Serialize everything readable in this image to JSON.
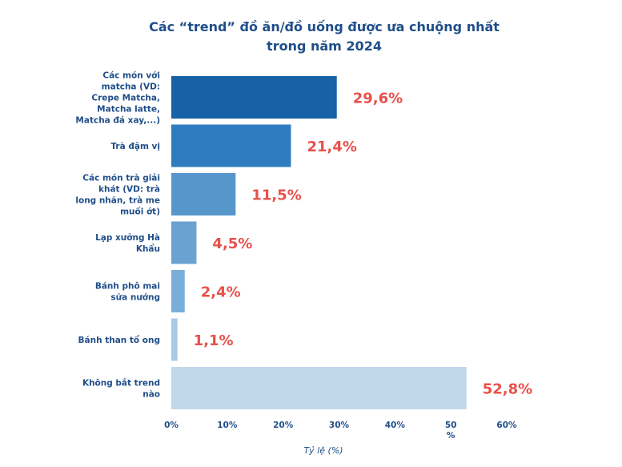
{
  "chart_data": {
    "type": "bar",
    "orientation": "horizontal",
    "title_lines": [
      "Các “trend” đồ ăn/đồ uống được ưa chuộng nhất",
      "trong năm 2024"
    ],
    "xlabel": "Tỷ lệ (%)",
    "ylabel": "",
    "xlim": [
      0,
      60
    ],
    "ticks": [
      {
        "value": 0,
        "label": "0%"
      },
      {
        "value": 10,
        "label": "10%"
      },
      {
        "value": 20,
        "label": "20%"
      },
      {
        "value": 30,
        "label": "30%"
      },
      {
        "value": 40,
        "label": "40%"
      },
      {
        "value": 50,
        "label": "50 %"
      },
      {
        "value": 60,
        "label": "60%"
      }
    ],
    "categories": [
      "Các món với matcha (VD: Crepe Matcha, Matcha latte, Matcha đá xay,...)",
      "Trà đậm vị",
      "Các món trà giải khát (VD: trà long nhãn, trà me muối ớt)",
      "Lạp xưởng Hà Khẩu",
      "Bánh phô mai sữa nướng",
      "Bánh than tổ ong",
      "Không bắt trend nào"
    ],
    "category_lines": [
      [
        "Các món với",
        "matcha (VD:",
        "Crepe Matcha,",
        "Matcha latte,",
        "Matcha đá xay,...)"
      ],
      [
        "Trà đậm vị"
      ],
      [
        "Các món trà giải",
        "khát (VD: trà",
        "long nhãn, trà me",
        "muối ớt)"
      ],
      [
        "Lạp xưởng Hà",
        "Khẩu"
      ],
      [
        "Bánh phô mai",
        "sữa nướng"
      ],
      [
        "Bánh than tổ ong"
      ],
      [
        "Không bắt trend",
        "nào"
      ]
    ],
    "values": [
      29.6,
      21.4,
      11.5,
      4.5,
      2.4,
      1.1,
      52.8
    ],
    "value_labels": [
      "29,6%",
      "21,4%",
      "11,5%",
      "4,5%",
      "2,4%",
      "1,1%",
      "52,8%"
    ],
    "bar_colors": [
      "#1761a6",
      "#2e7cbf",
      "#5696cb",
      "#6aa2d1",
      "#7aaed8",
      "#a9cae5",
      "#c1d8eb"
    ],
    "value_label_color": "#e8504a",
    "text_color": "#1f4e89",
    "grid": false,
    "legend": "none"
  }
}
